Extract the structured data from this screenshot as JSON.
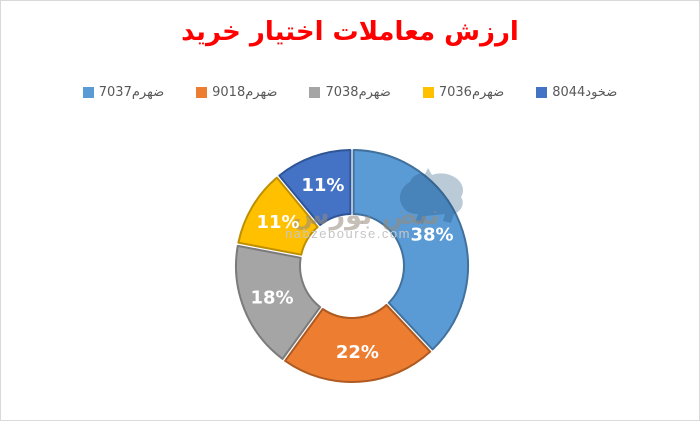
{
  "panel": {
    "background": "#ffffff",
    "border_color": "#d9d9d9"
  },
  "title": {
    "text": "ارزش معاملات اختیار خرید",
    "color": "#ff0000"
  },
  "watermark": {
    "logo_text": "نبض بورس",
    "domain": "nabzebourse.com",
    "bull_color": "#1e4e79"
  },
  "chart_data": {
    "type": "pie",
    "subtype": "donut",
    "title": "ارزش معاملات اختیار خرید",
    "unit": "%",
    "start_angle_deg": 0,
    "direction": "clockwise",
    "legend_position": "top",
    "hole_ratio": 0.45,
    "categories": [
      "ضهرم7037",
      "ضهرم9018",
      "ضهرم7038",
      "ضهرم7036",
      "ضخود8044"
    ],
    "values": [
      38,
      22,
      18,
      11,
      11
    ],
    "data_labels": [
      "38%",
      "22%",
      "18%",
      "11%",
      "11%"
    ],
    "colors": [
      "#5b9bd5",
      "#ed7d31",
      "#a5a5a5",
      "#ffc000",
      "#4472c4"
    ],
    "border_colors": [
      "#41719c",
      "#ae5a21",
      "#7b7b7b",
      "#bf8f00",
      "#2f5597"
    ],
    "label_color": "#ffffff"
  }
}
